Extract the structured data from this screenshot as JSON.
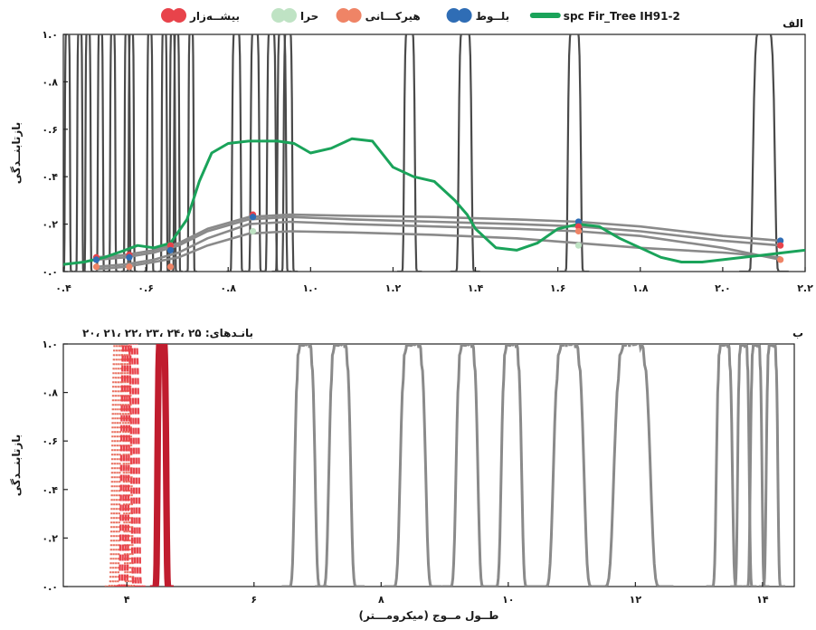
{
  "legend": {
    "items": [
      {
        "label": "بیشــه‌زار",
        "color": "#e8434b",
        "kind": "dot"
      },
      {
        "label": "حرا",
        "color": "#bfe3c4",
        "kind": "dot"
      },
      {
        "label": "هیرکـــانی",
        "color": "#ef8466",
        "kind": "dot"
      },
      {
        "label": "بلــوط",
        "color": "#2f6db5",
        "kind": "dot"
      },
      {
        "label": "spc Fir_Tree IH91-2",
        "color": "#1aa35a",
        "kind": "line"
      }
    ]
  },
  "panel_top": {
    "tag": "الف",
    "ylabel": "بازتابنــدگی",
    "xticks": [
      {
        "v": 0.4,
        "t": "۰.۴"
      },
      {
        "v": 0.6,
        "t": "۰.۶"
      },
      {
        "v": 0.8,
        "t": "۰.۸"
      },
      {
        "v": 1.0,
        "t": "۱.۰"
      },
      {
        "v": 1.2,
        "t": "۱.۲"
      },
      {
        "v": 1.4,
        "t": "۱.۴"
      },
      {
        "v": 1.6,
        "t": "۱.۶"
      },
      {
        "v": 1.8,
        "t": "۱.۸"
      },
      {
        "v": 2.0,
        "t": "۲.۰"
      },
      {
        "v": 2.2,
        "t": "۲.۲"
      }
    ],
    "yticks": [
      {
        "v": 0.0,
        "t": "۰.۰"
      },
      {
        "v": 0.2,
        "t": "۰.۲"
      },
      {
        "v": 0.4,
        "t": "۰.۴"
      },
      {
        "v": 0.6,
        "t": "۰.۶"
      },
      {
        "v": 0.8,
        "t": "۰.۸"
      },
      {
        "v": 1.0,
        "t": "۱.۰"
      }
    ]
  },
  "panel_bottom": {
    "tag": "ب",
    "bands_note": "بانـدهای: ۲۵ ،۲۴ ،۲۳ ،۲۲ ،۲۱ ،۲۰",
    "ylabel": "بازتابنــدگی",
    "xlabel": "(طــول مــوج (میکرومـــتر",
    "xticks": [
      {
        "v": 4,
        "t": "۴"
      },
      {
        "v": 6,
        "t": "۶"
      },
      {
        "v": 8,
        "t": "۸"
      },
      {
        "v": 10,
        "t": "۱۰"
      },
      {
        "v": 12,
        "t": "۱۲"
      },
      {
        "v": 14,
        "t": "۱۴"
      }
    ],
    "yticks": [
      {
        "v": 0.0,
        "t": "۰.۰"
      },
      {
        "v": 0.2,
        "t": "۰.۲"
      },
      {
        "v": 0.4,
        "t": "۰.۴"
      },
      {
        "v": 0.6,
        "t": "۰.۶"
      },
      {
        "v": 0.8,
        "t": "۰.۸"
      },
      {
        "v": 1.0,
        "t": "۱.۰"
      }
    ]
  },
  "chart_data": [
    {
      "type": "line",
      "xlim": [
        0.4,
        2.2
      ],
      "ylim": [
        0,
        1
      ],
      "series": [
        {
          "name": "spc Fir_Tree IH91-2",
          "color": "#1aa35a",
          "kind": "green",
          "x": [
            0.4,
            0.45,
            0.5,
            0.55,
            0.58,
            0.62,
            0.66,
            0.7,
            0.73,
            0.76,
            0.8,
            0.85,
            0.92,
            0.96,
            1.0,
            1.05,
            1.1,
            1.15,
            1.2,
            1.25,
            1.3,
            1.35,
            1.38,
            1.4,
            1.45,
            1.5,
            1.55,
            1.6,
            1.65,
            1.7,
            1.75,
            1.8,
            1.85,
            1.9,
            1.95,
            2.0,
            2.05,
            2.1,
            2.15,
            2.2
          ],
          "y": [
            0.03,
            0.04,
            0.06,
            0.09,
            0.11,
            0.1,
            0.12,
            0.22,
            0.38,
            0.5,
            0.54,
            0.55,
            0.55,
            0.54,
            0.5,
            0.52,
            0.56,
            0.55,
            0.44,
            0.4,
            0.38,
            0.3,
            0.24,
            0.18,
            0.1,
            0.09,
            0.12,
            0.18,
            0.2,
            0.19,
            0.14,
            0.1,
            0.06,
            0.04,
            0.04,
            0.05,
            0.06,
            0.07,
            0.08,
            0.09
          ]
        },
        {
          "name": "",
          "color": "#8a8a8a",
          "kind": "gray",
          "x": [
            0.48,
            0.55,
            0.62,
            0.68,
            0.75,
            0.85,
            0.95,
            1.1,
            1.3,
            1.5,
            1.65,
            1.8,
            2.0,
            2.14
          ],
          "y": [
            0.06,
            0.07,
            0.09,
            0.12,
            0.18,
            0.23,
            0.24,
            0.235,
            0.23,
            0.22,
            0.21,
            0.19,
            0.15,
            0.13
          ]
        },
        {
          "name": "",
          "color": "#8a8a8a",
          "kind": "gray",
          "x": [
            0.48,
            0.55,
            0.62,
            0.68,
            0.75,
            0.85,
            0.95,
            1.1,
            1.3,
            1.5,
            1.65,
            1.8,
            2.0,
            2.14
          ],
          "y": [
            0.05,
            0.06,
            0.08,
            0.11,
            0.17,
            0.22,
            0.23,
            0.22,
            0.21,
            0.2,
            0.19,
            0.17,
            0.13,
            0.11
          ]
        },
        {
          "name": "",
          "color": "#8a8a8a",
          "kind": "gray",
          "x": [
            0.48,
            0.55,
            0.62,
            0.68,
            0.75,
            0.85,
            0.95,
            1.1,
            1.3,
            1.5,
            1.65,
            1.8,
            2.0,
            2.14
          ],
          "y": [
            0.02,
            0.03,
            0.05,
            0.08,
            0.14,
            0.2,
            0.21,
            0.2,
            0.19,
            0.18,
            0.17,
            0.15,
            0.1,
            0.05
          ]
        },
        {
          "name": "",
          "color": "#8a8a8a",
          "kind": "gray",
          "x": [
            0.48,
            0.55,
            0.62,
            0.68,
            0.75,
            0.85,
            0.95,
            1.1,
            1.3,
            1.5,
            1.65,
            1.8,
            2.0,
            2.14
          ],
          "y": [
            0.01,
            0.02,
            0.04,
            0.06,
            0.11,
            0.16,
            0.17,
            0.165,
            0.155,
            0.14,
            0.12,
            0.1,
            0.08,
            0.06
          ]
        }
      ],
      "bands": [
        {
          "c": 0.41,
          "w": 0.012
        },
        {
          "c": 0.44,
          "w": 0.012
        },
        {
          "c": 0.46,
          "w": 0.012
        },
        {
          "c": 0.49,
          "w": 0.012
        },
        {
          "c": 0.52,
          "w": 0.012
        },
        {
          "c": 0.555,
          "w": 0.012
        },
        {
          "c": 0.565,
          "w": 0.012
        },
        {
          "c": 0.61,
          "w": 0.012
        },
        {
          "c": 0.645,
          "w": 0.012
        },
        {
          "c": 0.665,
          "w": 0.012
        },
        {
          "c": 0.675,
          "w": 0.012
        },
        {
          "c": 0.71,
          "w": 0.012
        },
        {
          "c": 0.82,
          "w": 0.02
        },
        {
          "c": 0.865,
          "w": 0.02
        },
        {
          "c": 0.905,
          "w": 0.02
        },
        {
          "c": 0.93,
          "w": 0.02
        },
        {
          "c": 0.945,
          "w": 0.02
        },
        {
          "c": 1.24,
          "w": 0.025
        },
        {
          "c": 1.375,
          "w": 0.03
        },
        {
          "c": 1.64,
          "w": 0.03
        },
        {
          "c": 2.1,
          "w": 0.05
        }
      ],
      "markers": [
        {
          "x": 0.48,
          "y": 0.06,
          "color": "#e8434b"
        },
        {
          "x": 0.48,
          "y": 0.05,
          "color": "#2f6db5"
        },
        {
          "x": 0.48,
          "y": 0.02,
          "color": "#ef8466"
        },
        {
          "x": 0.56,
          "y": 0.07,
          "color": "#e8434b"
        },
        {
          "x": 0.56,
          "y": 0.06,
          "color": "#2f6db5"
        },
        {
          "x": 0.56,
          "y": 0.02,
          "color": "#ef8466"
        },
        {
          "x": 0.66,
          "y": 0.11,
          "color": "#e8434b"
        },
        {
          "x": 0.66,
          "y": 0.09,
          "color": "#2f6db5"
        },
        {
          "x": 0.66,
          "y": 0.02,
          "color": "#ef8466"
        },
        {
          "x": 0.86,
          "y": 0.24,
          "color": "#e8434b"
        },
        {
          "x": 0.86,
          "y": 0.23,
          "color": "#2f6db5"
        },
        {
          "x": 0.86,
          "y": 0.17,
          "color": "#bfe3c4"
        },
        {
          "x": 1.65,
          "y": 0.21,
          "color": "#2f6db5"
        },
        {
          "x": 1.65,
          "y": 0.19,
          "color": "#e8434b"
        },
        {
          "x": 1.65,
          "y": 0.17,
          "color": "#ef8466"
        },
        {
          "x": 1.65,
          "y": 0.11,
          "color": "#bfe3c4"
        },
        {
          "x": 2.14,
          "y": 0.13,
          "color": "#2f6db5"
        },
        {
          "x": 2.14,
          "y": 0.11,
          "color": "#e8434b"
        },
        {
          "x": 2.14,
          "y": 0.05,
          "color": "#ef8466"
        }
      ]
    },
    {
      "type": "line",
      "xlim": [
        3.0,
        14.5
      ],
      "ylim": [
        0,
        1
      ],
      "series": [
        {
          "name": "",
          "color": "#e87060",
          "style": "dotted",
          "peak_x": 3.92,
          "width": 0.16
        },
        {
          "name": "",
          "color": "#e8434b",
          "style": "dashed",
          "peak_x": 4.05,
          "width": 0.14
        },
        {
          "name": "",
          "color": "#c01c2e",
          "style": "solid",
          "peak_x": 4.55,
          "width": 0.12
        }
      ],
      "gray_bands": [
        6.8,
        7.35,
        8.5,
        9.35,
        10.05,
        10.95,
        11.95,
        13.4,
        13.7,
        13.9,
        14.15
      ],
      "gray_widths": [
        0.28,
        0.3,
        0.35,
        0.3,
        0.28,
        0.42,
        0.5,
        0.22,
        0.16,
        0.16,
        0.16
      ]
    }
  ]
}
